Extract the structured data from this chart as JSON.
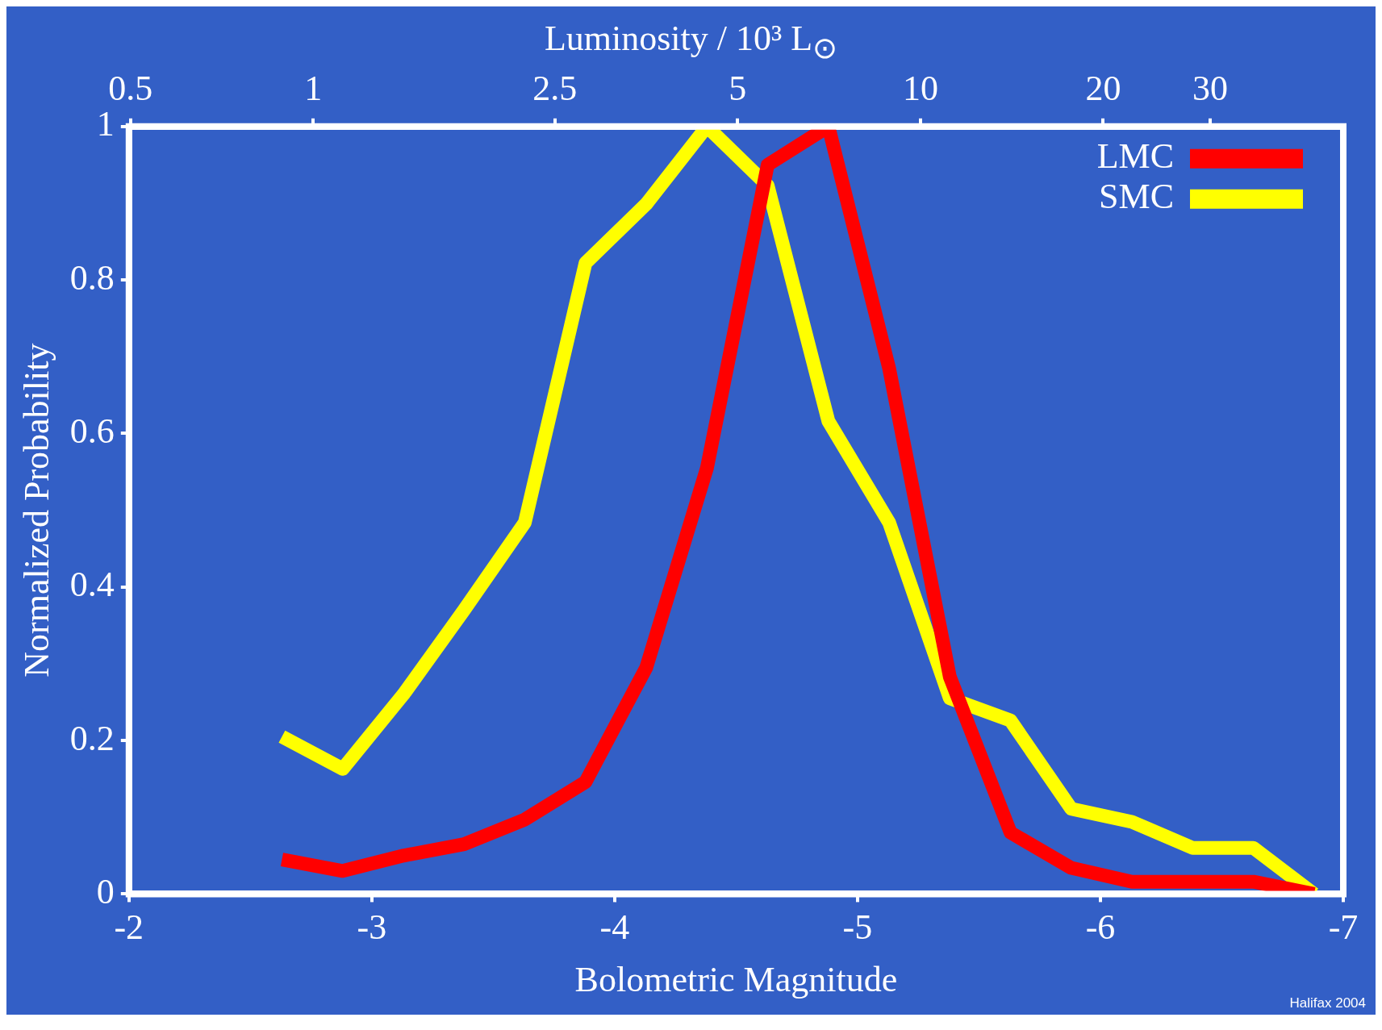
{
  "chart_data": {
    "type": "line",
    "xlabel": "Bolometric Magnitude",
    "ylabel": "Normalized Probability",
    "x2label": "Luminosity / 10³ L$_{⊙}$",
    "annotations": [
      "Halifax 2004"
    ],
    "x": [
      -2.63,
      -2.88,
      -3.13,
      -3.38,
      -3.63,
      -3.88,
      -4.13,
      -4.38,
      -4.63,
      -4.88,
      -5.13,
      -5.38,
      -5.63,
      -5.88,
      -6.13,
      -6.38,
      -6.63,
      -6.88
    ],
    "series": [
      {
        "name": "LMC",
        "color": "#ff0000",
        "values": [
          0.045,
          0.03,
          0.05,
          0.065,
          0.097,
          0.146,
          0.295,
          0.555,
          0.95,
          1.0,
          0.685,
          0.283,
          0.08,
          0.034,
          0.016,
          0.016,
          0.016,
          0.0
        ]
      },
      {
        "name": "SMC",
        "color": "#ffff00",
        "values": [
          0.205,
          0.163,
          0.26,
          0.37,
          0.484,
          0.822,
          0.899,
          1.0,
          0.923,
          0.616,
          0.484,
          0.255,
          0.226,
          0.111,
          0.094,
          0.06,
          0.06,
          0.0
        ]
      }
    ],
    "xlim": [
      -2,
      -7
    ],
    "xticks": [
      -2,
      -3,
      -4,
      -5,
      -6,
      -7
    ],
    "ylim": [
      0,
      1
    ],
    "yticks": [
      0,
      0.2,
      0.4,
      0.6,
      0.8,
      1
    ],
    "x2lim": [
      0.497,
      49.7
    ],
    "x2ticks": [
      0.5,
      1,
      2.5,
      5,
      10,
      20,
      30
    ],
    "log": "x2",
    "grid": false,
    "legend": "top right",
    "marker": "none",
    "line_style": "solid"
  }
}
